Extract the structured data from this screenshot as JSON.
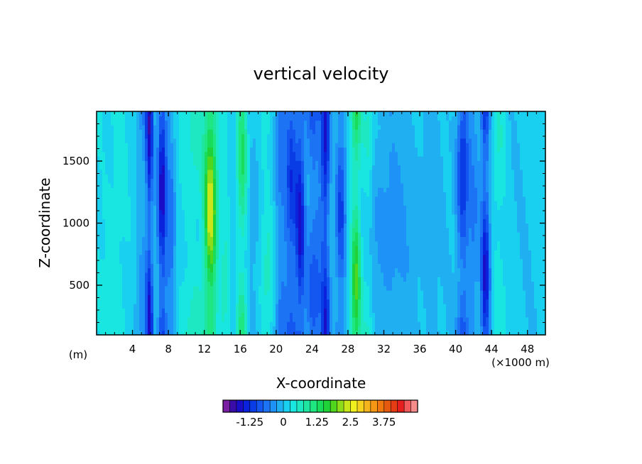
{
  "chart_data": {
    "type": "heatmap",
    "title": "vertical velocity",
    "xlabel": "X-coordinate",
    "ylabel": "Z-coordinate",
    "x_unit_left": "(m)",
    "x_unit_right": "(×1000 m)",
    "xlim": [
      0,
      50
    ],
    "ylim": [
      100,
      1900
    ],
    "x_ticks": [
      4,
      8,
      12,
      16,
      20,
      24,
      28,
      32,
      36,
      40,
      44,
      48
    ],
    "y_ticks": [
      500,
      1000,
      1500
    ],
    "colorbar": {
      "labels": [
        "-1.25",
        "0",
        "1.25",
        "2.5",
        "3.75"
      ],
      "label_values": [
        -1.25,
        0,
        1.25,
        2.5,
        3.75
      ],
      "min": -2.25,
      "step": 0.25,
      "colors": [
        "#7b1fa2",
        "#3a0ca8",
        "#1a0dc8",
        "#0a22dc",
        "#0a3ce6",
        "#1456f0",
        "#1c74f5",
        "#1e92f7",
        "#20b0f2",
        "#19d0f0",
        "#19e6e0",
        "#1ee8c2",
        "#1ee6a0",
        "#1ee680",
        "#19dc5a",
        "#1ed238",
        "#50d61c",
        "#8cdc19",
        "#c8e61a",
        "#f0f01e",
        "#f5d21e",
        "#f5b41e",
        "#f59614",
        "#f0780f",
        "#e65a0f",
        "#e63c14",
        "#e61e1e",
        "#f05a5a",
        "#f58c8c"
      ]
    },
    "field_features": [
      {
        "x": 0,
        "w": 6,
        "v": 0.2
      },
      {
        "x": 2.5,
        "w": 1.2,
        "v": 0.3
      },
      {
        "x": 5.2,
        "w": 0.9,
        "v": -0.6
      },
      {
        "x": 5.9,
        "w": 0.4,
        "v": -1.5
      },
      {
        "x": 7.3,
        "w": 0.5,
        "v": -1.8
      },
      {
        "x": 8.3,
        "w": 0.5,
        "v": -0.8
      },
      {
        "x": 11,
        "w": 1.5,
        "v": 0.6
      },
      {
        "x": 12.7,
        "w": 0.7,
        "v": 2.4
      },
      {
        "x": 14.3,
        "w": 0.6,
        "v": 0.5
      },
      {
        "x": 16.2,
        "w": 0.6,
        "v": 1.3
      },
      {
        "x": 17.6,
        "w": 0.8,
        "v": -0.2
      },
      {
        "x": 19.0,
        "w": 0.8,
        "v": 0.5
      },
      {
        "x": 20.5,
        "w": 0.6,
        "v": -0.7
      },
      {
        "x": 21.7,
        "w": 0.7,
        "v": -1.3
      },
      {
        "x": 22.7,
        "w": 0.5,
        "v": -1.6
      },
      {
        "x": 24.2,
        "w": 1.0,
        "v": -1.0
      },
      {
        "x": 25.5,
        "w": 0.5,
        "v": -1.5
      },
      {
        "x": 27.2,
        "w": 0.6,
        "v": -1.2
      },
      {
        "x": 28.9,
        "w": 0.6,
        "v": 1.8
      },
      {
        "x": 30.2,
        "w": 0.6,
        "v": 0.6
      },
      {
        "x": 32.5,
        "w": 2.5,
        "v": -0.5
      },
      {
        "x": 37.0,
        "w": 1.2,
        "v": -0.3
      },
      {
        "x": 40.8,
        "w": 0.7,
        "v": -1.4
      },
      {
        "x": 42.0,
        "w": 0.6,
        "v": -0.6
      },
      {
        "x": 43.3,
        "w": 0.5,
        "v": -1.6
      },
      {
        "x": 44.8,
        "w": 0.8,
        "v": 0.4
      },
      {
        "x": 47.5,
        "w": 1.2,
        "v": 0.0
      }
    ]
  }
}
